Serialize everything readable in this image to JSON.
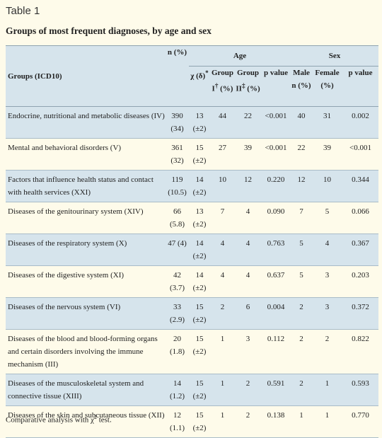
{
  "label": "Table 1",
  "title": "Groups of most frequent diagnoses, by age and sex",
  "header": {
    "groups_label": "Groups (ICD10)",
    "age_label": "Age",
    "sex_label": "Sex",
    "n_col": "n (%)",
    "chi_col": "χ (δ)",
    "chi_mark": "*",
    "group1_col": "Group I",
    "group1_mark": "†",
    "group1_pct": "(%)",
    "group2_col": "Group II",
    "group2_mark": "‡",
    "group2_pct": "(%)",
    "p_age_col": "p value",
    "male_col": "Male n (%)",
    "female_col": "Female (%)",
    "p_sex_col": "p value"
  },
  "rows": [
    {
      "group": "Endocrine, nutritional and metabolic diseases (IV)",
      "n": "390 (34)",
      "chi": "13 (±2)",
      "g1": "44",
      "g2": "22",
      "p_age": "<0.001",
      "male": "40",
      "female": "31",
      "p_sex": "0.002"
    },
    {
      "group": "Mental and behavioral disorders (V)",
      "n": "361 (32)",
      "chi": "15 (±2)",
      "g1": "27",
      "g2": "39",
      "p_age": "<0.001",
      "male": "22",
      "female": "39",
      "p_sex": "<0.001"
    },
    {
      "group": "Factors that influence health status and contact with health services (XXI)",
      "n": "119 (10.5)",
      "chi": "14 (±2)",
      "g1": "10",
      "g2": "12",
      "p_age": "0.220",
      "male": "12",
      "female": "10",
      "p_sex": "0.344"
    },
    {
      "group": "Diseases of the genitourinary system (XIV)",
      "n": "66 (5.8)",
      "chi": "13 (±2)",
      "g1": "7",
      "g2": "4",
      "p_age": "0.090",
      "male": "7",
      "female": "5",
      "p_sex": "0.066"
    },
    {
      "group": "Diseases of the respiratory system (X)",
      "n": "47 (4)",
      "chi": "14 (±2)",
      "g1": "4",
      "g2": "4",
      "p_age": "0.763",
      "male": "5",
      "female": "4",
      "p_sex": "0.367"
    },
    {
      "group": "Diseases of the digestive system (XI)",
      "n": "42 (3.7)",
      "chi": "14 (±2)",
      "g1": "4",
      "g2": "4",
      "p_age": "0.637",
      "male": "5",
      "female": "3",
      "p_sex": "0.203"
    },
    {
      "group": "Diseases of the nervous system (VI)",
      "n": "33 (2.9)",
      "chi": "15 (±2)",
      "g1": "2",
      "g2": "6",
      "p_age": "0.004",
      "male": "2",
      "female": "3",
      "p_sex": "0.372"
    },
    {
      "group": "Diseases of the blood and blood-forming organs and certain disorders involving the immune mechanism (III)",
      "n": "20 (1.8)",
      "chi": "15 (±2)",
      "g1": "1",
      "g2": "3",
      "p_age": "0.112",
      "male": "2",
      "female": "2",
      "p_sex": "0.822"
    },
    {
      "group": "Diseases of the musculoskeletal system and connective tissue (XIII)",
      "n": "14 (1.2)",
      "chi": "15 (±2)",
      "g1": "1",
      "g2": "2",
      "p_age": "0.591",
      "male": "2",
      "female": "1",
      "p_sex": "0.593"
    },
    {
      "group": "Diseases of the skin and subcutaneous tissue (XII)",
      "n": "12 (1.1)",
      "chi": "15 (±2)",
      "g1": "1",
      "g2": "2",
      "p_age": "0.138",
      "male": "1",
      "female": "1",
      "p_sex": "0.770"
    }
  ],
  "footnote": {
    "text": "Comparative analysis with χ",
    "sup": "2",
    "end": " test."
  }
}
